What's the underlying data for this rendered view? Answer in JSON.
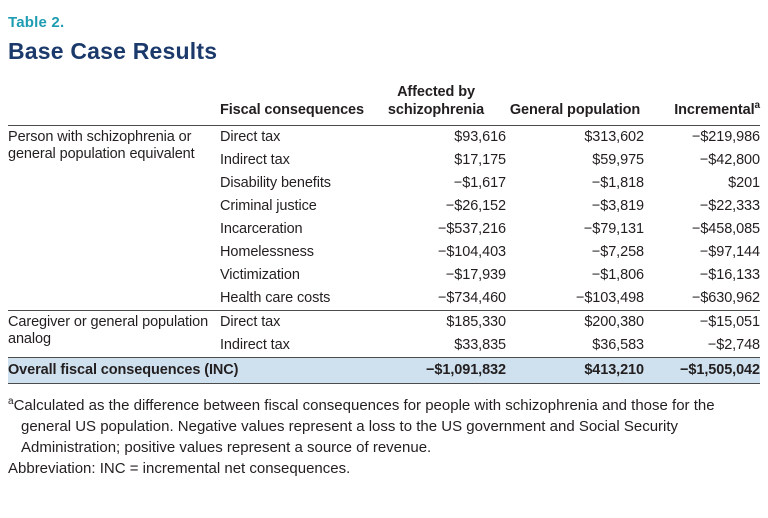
{
  "colors": {
    "teal": "#1e9db2",
    "navy": "#1b3a6b",
    "highlight": "#cfe0ee",
    "rule": "#4c4c4c",
    "text": "#231f20"
  },
  "header": {
    "table_label": "Table 2.",
    "title": "Base Case Results"
  },
  "table": {
    "columns": [
      "",
      "Fiscal consequences",
      "Affected by schizophrenia",
      "General population",
      "Incremental"
    ],
    "incremental_note_marker": "a",
    "groups": [
      {
        "label": "Person with schizophrenia or general population equivalent",
        "rows": [
          {
            "consequence": "Direct tax",
            "affected": "$93,616",
            "general": "$313,602",
            "incremental": "−$219,986"
          },
          {
            "consequence": "Indirect tax",
            "affected": "$17,175",
            "general": "$59,975",
            "incremental": "−$42,800"
          },
          {
            "consequence": "Disability benefits",
            "affected": "−$1,617",
            "general": "−$1,818",
            "incremental": "$201"
          },
          {
            "consequence": "Criminal justice",
            "affected": "−$26,152",
            "general": "−$3,819",
            "incremental": "−$22,333"
          },
          {
            "consequence": "Incarceration",
            "affected": "−$537,216",
            "general": "−$79,131",
            "incremental": "−$458,085"
          },
          {
            "consequence": "Homelessness",
            "affected": "−$104,403",
            "general": "−$7,258",
            "incremental": "−$97,144"
          },
          {
            "consequence": "Victimization",
            "affected": "−$17,939",
            "general": "−$1,806",
            "incremental": "−$16,133"
          },
          {
            "consequence": "Health care costs",
            "affected": "−$734,460",
            "general": "−$103,498",
            "incremental": "−$630,962"
          }
        ]
      },
      {
        "label": "Caregiver or general population analog",
        "rows": [
          {
            "consequence": "Direct tax",
            "affected": "$185,330",
            "general": "$200,380",
            "incremental": "−$15,051"
          },
          {
            "consequence": "Indirect tax",
            "affected": "$33,835",
            "general": "$36,583",
            "incremental": "−$2,748"
          }
        ]
      }
    ],
    "total_row": {
      "label": "Overall fiscal consequences (INC)",
      "affected": "−$1,091,832",
      "general": "$413,210",
      "incremental": "−$1,505,042"
    }
  },
  "footnotes": {
    "a_marker": "a",
    "a_text": "Calculated as the difference between fiscal consequences for people with schizophrenia and those for the general US population. Negative values represent a loss to the US government and Social Security Administration; positive values represent a source of revenue.",
    "abbreviation": "Abbreviation: INC = incremental net consequences."
  }
}
